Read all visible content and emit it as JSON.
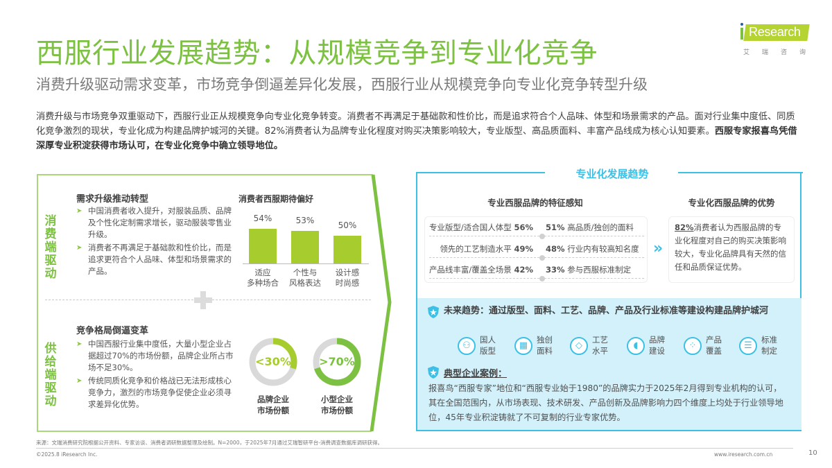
{
  "header": {
    "title": "西服行业发展趋势：从规模竞争到专业化竞争",
    "subtitle": "消费升级驱动需求变革，市场竞争倒逼差异化发展，西服行业从规模竞争向专业化竞争转型升级"
  },
  "logo": {
    "brand": "Research",
    "brand_prefix": "i",
    "cn": "艾瑞咨询"
  },
  "intro": {
    "normal": "消费升级与市场竞争双重驱动下，西服行业正从规模竞争向专业化竞争转变。消费者不再满足于基础款和性价比，而是追求符合个人品味、体型和场景需求的产品。面对行业集中度低、同质化竞争激烈的现状，专业化成为构建品牌护城河的关键。82%消费者认为品牌专业化程度对购买决策影响较大，专业版型、高品质面料、丰富产品线成为核心认知要素。",
    "bold": "西服专家报喜鸟凭借深厚专业积淀获得市场认可，在专业化竞争中确立领导地位。"
  },
  "left_panel": {
    "demand": {
      "vertical_label": "消费端驱动",
      "title": "需求升级推动转型",
      "bullets": [
        "中国消费者收入提升，对服装品质、品牌及个性化定制需求增长，驱动服装零售业升级。",
        "消费者不再满足于基础款和性价比，而是追求更符合个人品味、体型和场景需求的产品。"
      ]
    },
    "supply": {
      "vertical_label": "供给端驱动",
      "title": "竞争格局倒逼变革",
      "bullets": [
        "中国西服行业集中度低，大量小型企业占据超过70%的市场份额，品牌企业所占市场不足30%。",
        "传统同质化竞争和价格战已无法形成核心竞争力，激烈的市场竞争促使企业必须寻求差异化优势。"
      ]
    },
    "donuts": [
      {
        "value": "<30%",
        "label_line1": "品牌企业",
        "label_line2": "市场份额",
        "color": "#a6cc2e",
        "percent": 30
      },
      {
        "value": ">70%",
        "label_line1": "小型企业",
        "label_line2": "市场份额",
        "color": "#7dc142",
        "percent": 70
      }
    ]
  },
  "chart_data": {
    "type": "bar",
    "title": "消费者西服期待偏好",
    "categories": [
      "适应多种场合",
      "个性与风格表达",
      "设计感时尚感"
    ],
    "category_lines": [
      [
        "适应",
        "多种场合"
      ],
      [
        "个性与",
        "风格表达"
      ],
      [
        "设计感",
        "时尚感"
      ]
    ],
    "values": [
      54,
      53,
      50
    ],
    "value_labels": [
      "54%",
      "53%",
      "50%"
    ],
    "unit": "%",
    "xlabel": "",
    "ylabel": "",
    "grid": false,
    "bar_color": "#a6cc2e"
  },
  "right_panel": {
    "title": "专业化发展趋势",
    "features": {
      "title": "专业西服品牌的特征感知",
      "rows": [
        {
          "left_label": "专业版型/适合国人体型",
          "left_value": "56%",
          "right_value": "51%",
          "right_label": "高品质/独创的面料"
        },
        {
          "left_label": "领先的工艺制造水平",
          "left_value": "49%",
          "right_value": "48%",
          "right_label": "行业内有较高知名度"
        },
        {
          "left_label": "产品线丰富/覆盖全场景",
          "left_value": "42%",
          "right_value": "33%",
          "right_label": "参与西服标准制定"
        }
      ]
    },
    "advantage": {
      "title": "专业化西服品牌的优势",
      "highlight": "82%",
      "text": "消费者认为西服品牌的专业化程度对自己的购买决策影响较大，专业化品牌具有天然的信任和品质保证优势。"
    },
    "trend": {
      "title": "未来趋势：通过版型、面料、工艺、品牌、产品及行业标准等建设构建品牌护城河",
      "icons": [
        {
          "icon": "people-icon",
          "line1": "国人",
          "line2": "版型"
        },
        {
          "icon": "fabric-icon",
          "line1": "独创",
          "line2": "面料"
        },
        {
          "icon": "diamond-icon",
          "line1": "工艺",
          "line2": "水平"
        },
        {
          "icon": "megaphone-icon",
          "line1": "品牌",
          "line2": "建设"
        },
        {
          "icon": "grid-icon",
          "line1": "产品",
          "line2": "覆盖"
        },
        {
          "icon": "list-icon",
          "line1": "标准",
          "line2": "制定"
        }
      ]
    },
    "case": {
      "title": "典型企业案例：",
      "text": "报喜鸟“西服专家”地位和“西服专业始于1980”的品牌实力于2025年2月得到专业机构的认可，其在全国范围内，从市场表现、技术研发、产品创新及品牌影响力四个维度上均处于行业领导地位，45年专业积淀铸就了不可复制的行业专家优势。"
    }
  },
  "footer": {
    "source": "来源：文瑞消费研究院根据公开资料、专家访谈、消费者调研数据整理及绘制。N=2000，于2025年7月通过艾瑞智研平台-消费调查数据库调研获得。",
    "copyright": "©2025.8 iResearch Inc.",
    "website": "www.iresearch.com.cn",
    "page": "10"
  },
  "colors": {
    "green": "#7dc142",
    "lime": "#a6cc2e",
    "cyan": "#3cc0e6",
    "light_cyan": "#d3f1fb"
  }
}
